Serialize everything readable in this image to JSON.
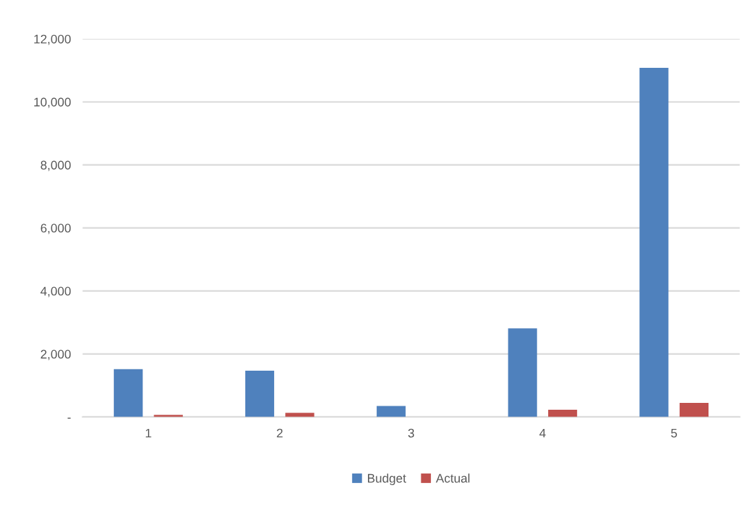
{
  "chart_data": {
    "type": "bar",
    "categories": [
      "1",
      "2",
      "3",
      "4",
      "5"
    ],
    "series": [
      {
        "name": "Budget",
        "color": "#4f81bd",
        "values": [
          1520,
          1470,
          350,
          2810,
          11080
        ]
      },
      {
        "name": "Actual",
        "color": "#c0504d",
        "values": [
          65,
          130,
          0,
          230,
          450
        ]
      }
    ],
    "ylim": [
      0,
      12000
    ],
    "yticks": [
      {
        "value": 0,
        "label": "-"
      },
      {
        "value": 2000,
        "label": "2,000"
      },
      {
        "value": 4000,
        "label": "4,000"
      },
      {
        "value": 6000,
        "label": "6,000"
      },
      {
        "value": 8000,
        "label": "8,000"
      },
      {
        "value": 10000,
        "label": "10,000"
      },
      {
        "value": 12000,
        "label": "12,000"
      }
    ],
    "grid": "y",
    "legend": "bottom"
  }
}
